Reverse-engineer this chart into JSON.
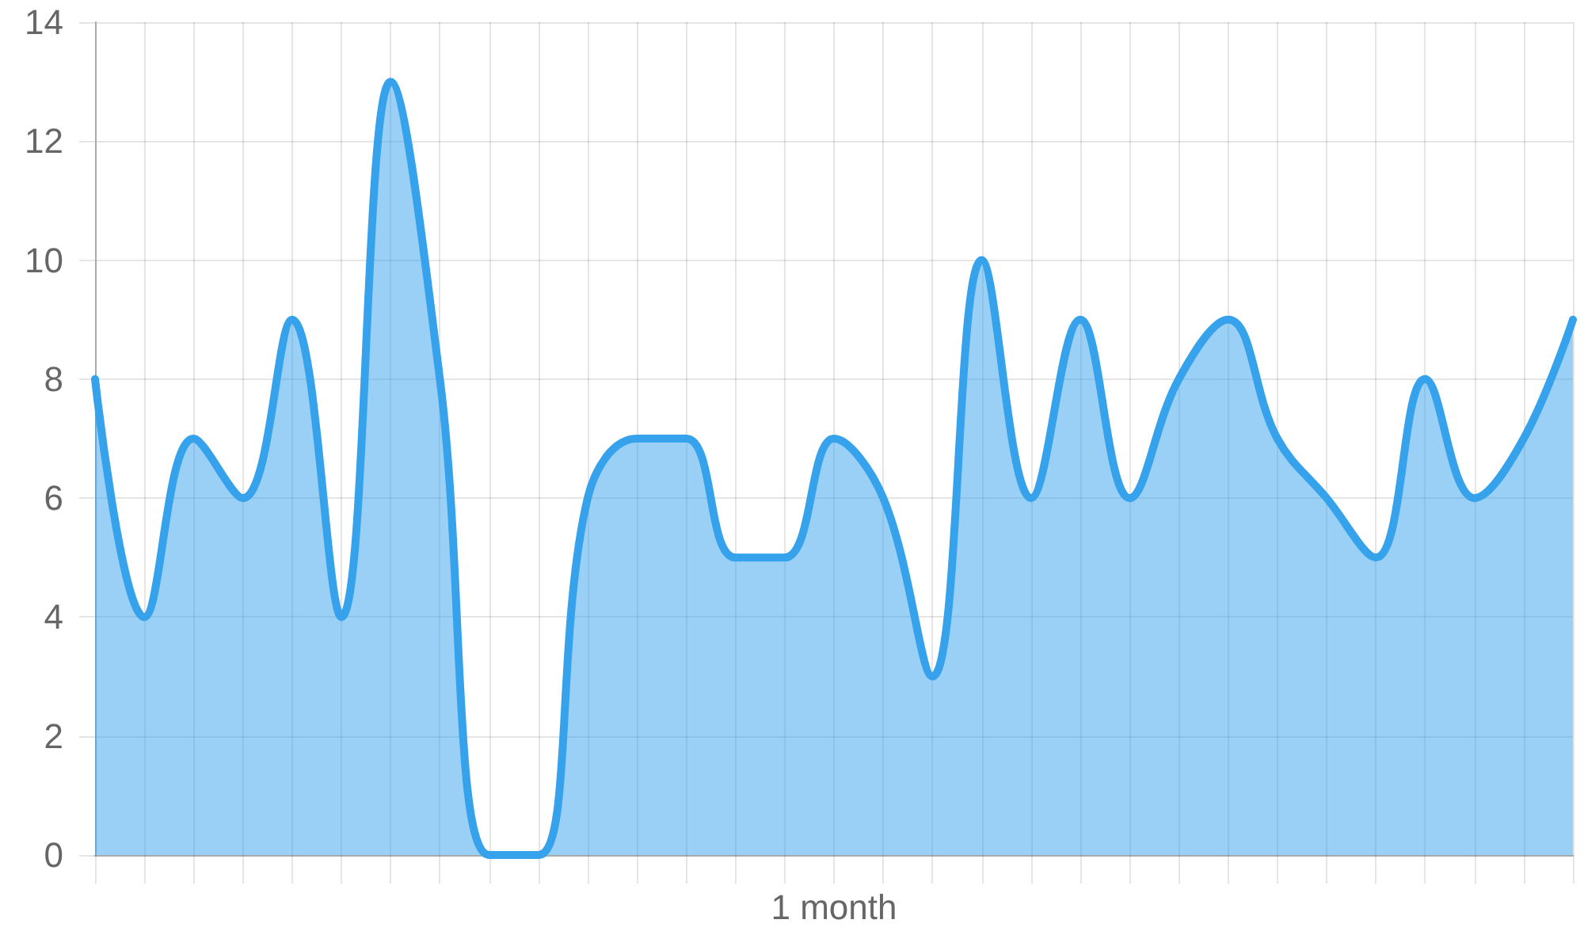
{
  "chart_data": {
    "type": "area",
    "categories": [
      null,
      null,
      null,
      null,
      null,
      null,
      null,
      null,
      null,
      null,
      null,
      null,
      null,
      null,
      null,
      null,
      null,
      null,
      null,
      null,
      null,
      null,
      null,
      null,
      null,
      null,
      null,
      null,
      null,
      null,
      null
    ],
    "values": [
      8,
      4,
      7,
      6,
      9,
      4,
      13,
      8,
      0,
      0,
      6,
      7,
      7,
      5,
      5,
      7,
      6,
      3,
      10,
      6,
      9,
      6,
      8,
      9,
      7,
      6,
      5,
      8,
      6,
      7,
      9
    ],
    "color": "#36a2eb",
    "xlabel": "1 month",
    "ylim": [
      0,
      14
    ],
    "yticks": [
      0,
      2,
      4,
      6,
      8,
      10,
      12,
      14
    ],
    "grid": true,
    "marker": "none",
    "tick_labels": "y"
  }
}
